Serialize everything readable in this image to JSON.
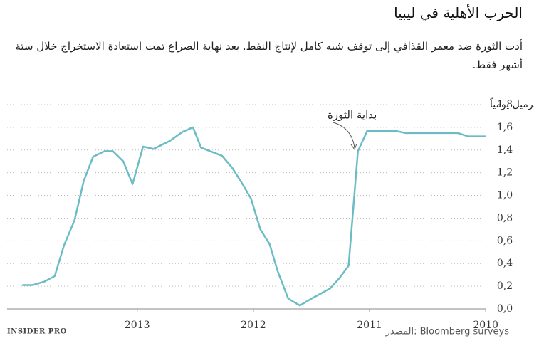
{
  "chart_data": {
    "type": "line",
    "title": "الحرب الأهلية في ليبيا",
    "subtitle": "أدت الثورة ضد معمر القذافي إلى توقف شبه كامل لإنتاج النفط. بعد نهاية الصراع تمت استعادة الاستخراج خلال ستة أشهر فقط.",
    "y_label": "مليون برميل يومياً",
    "annotation": "بداية الثورة",
    "source": "المصدر: Bloomberg surveys",
    "logo": "INSIDER PRO",
    "x": [
      2013.99,
      2013.9,
      2013.8,
      2013.71,
      2013.63,
      2013.54,
      2013.46,
      2013.38,
      2013.28,
      2013.21,
      2013.12,
      2013.04,
      2012.95,
      2012.86,
      2012.72,
      2012.61,
      2012.52,
      2012.45,
      2012.27,
      2012.18,
      2012.1,
      2012.02,
      2011.94,
      2011.86,
      2011.79,
      2011.7,
      2011.6,
      2011.5,
      2011.34,
      2011.26,
      2011.18,
      2011.1,
      2011.02,
      2010.78,
      2010.69,
      2010.24,
      2010.15,
      2010.0
    ],
    "series": [
      {
        "color": "#6bbcc4",
        "values": [
          0.21,
          0.21,
          0.24,
          0.29,
          0.56,
          0.78,
          1.13,
          1.34,
          1.39,
          1.39,
          1.3,
          1.1,
          1.43,
          1.41,
          1.48,
          1.56,
          1.6,
          1.42,
          1.35,
          1.24,
          1.11,
          0.97,
          0.7,
          0.57,
          0.33,
          0.09,
          0.03,
          0.09,
          0.18,
          0.27,
          0.38,
          1.39,
          1.57,
          1.57,
          1.55,
          1.55,
          1.52,
          1.52
        ]
      }
    ],
    "xlim": [
      2014.12,
      2009.86
    ],
    "xticks": [
      2010,
      2011,
      2012,
      2013
    ],
    "ylim": [
      0,
      1.8
    ],
    "yticks": [
      {
        "value": 0,
        "label": "0,0"
      },
      {
        "value": 0.2,
        "label": "0,2"
      },
      {
        "value": 0.4,
        "label": "0,4"
      },
      {
        "value": 0.6,
        "label": "0,6"
      },
      {
        "value": 0.8,
        "label": "0,8"
      },
      {
        "value": 1.0,
        "label": "1,0"
      },
      {
        "value": 1.2,
        "label": "1,2"
      },
      {
        "value": 1.4,
        "label": "1,4"
      },
      {
        "value": 1.6,
        "label": "1,6"
      },
      {
        "value": 1.8,
        "label": "1,8"
      }
    ],
    "grid": true
  }
}
